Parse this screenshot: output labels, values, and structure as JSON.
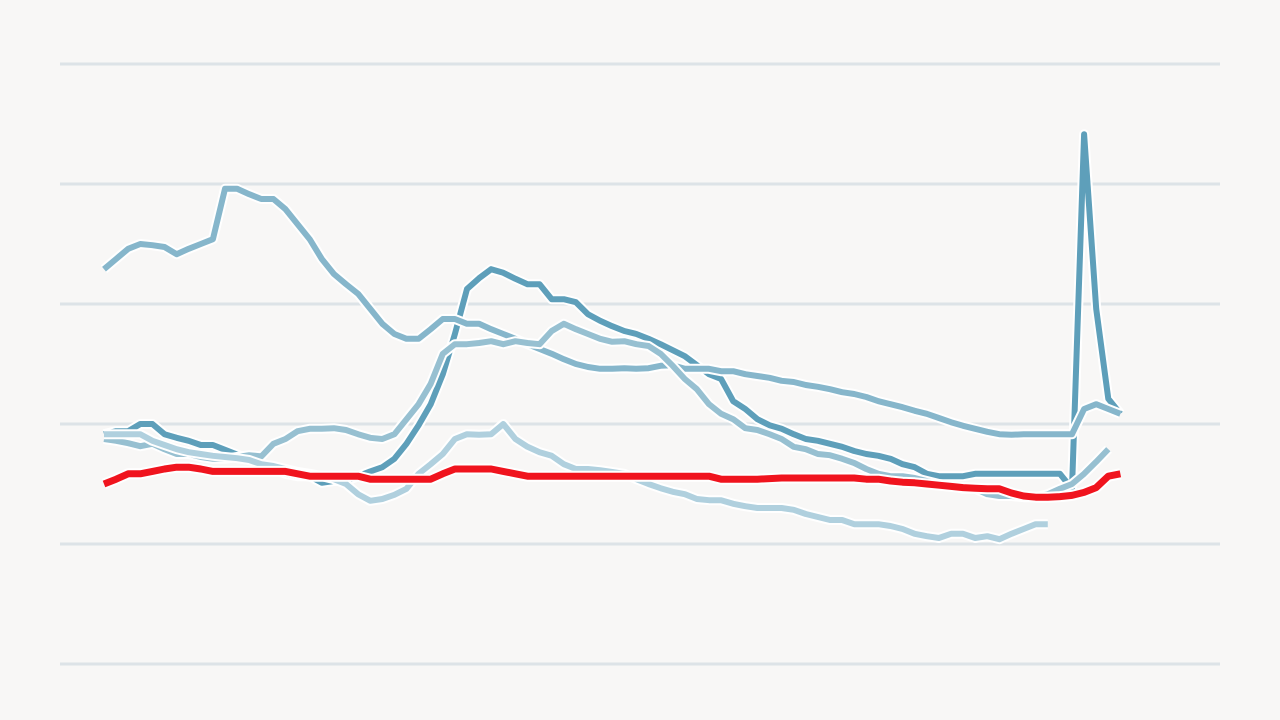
{
  "chart_data": {
    "type": "line",
    "title": "",
    "xlabel": "",
    "ylabel": "",
    "grid": true,
    "ylim": [
      0,
      100
    ],
    "x": [
      0,
      1,
      2,
      3,
      4,
      5,
      6,
      7,
      8,
      9,
      10,
      11,
      12,
      13,
      14,
      15,
      16,
      17,
      18,
      19,
      20,
      21,
      22,
      23,
      24,
      25,
      26,
      27,
      28,
      29,
      30,
      31,
      32,
      33,
      34,
      35,
      36,
      37,
      38,
      39,
      40,
      41,
      42,
      43,
      44,
      45,
      46,
      47,
      48,
      49,
      50,
      51,
      52,
      53,
      54,
      55,
      56,
      57,
      58,
      59,
      60,
      61,
      62,
      63,
      64,
      65,
      66,
      67,
      68,
      69,
      70,
      71,
      72,
      73,
      74,
      75,
      76,
      77,
      78,
      79,
      80,
      81,
      82,
      83,
      84
    ],
    "series": [
      {
        "color": "#5e9fba",
        "highlight": false,
        "values": [
          38.3,
          38.8,
          38.8,
          40.0,
          40.0,
          38.3,
          37.7,
          37.2,
          36.5,
          36.5,
          35.7,
          34.9,
          34.2,
          33.3,
          32.5,
          31.7,
          31.3,
          31.3,
          30.2,
          30.5,
          30.5,
          31.3,
          32.1,
          32.8,
          34.2,
          36.7,
          39.8,
          43.3,
          48.3,
          55.0,
          62.5,
          64.3,
          65.8,
          65.2,
          64.2,
          63.3,
          63.3,
          60.8,
          60.8,
          60.3,
          58.3,
          57.2,
          56.3,
          55.5,
          55.0,
          54.2,
          53.3,
          52.3,
          51.3,
          49.8,
          48.3,
          47.5,
          43.8,
          42.5,
          40.8,
          39.8,
          39.2,
          38.3,
          37.5,
          37.2,
          36.7,
          36.2,
          35.5,
          35.0,
          34.7,
          34.2,
          33.3,
          32.8,
          31.7,
          31.3,
          31.3,
          31.3,
          31.7,
          31.7,
          31.7,
          31.7,
          31.7,
          31.7,
          31.7,
          31.7,
          29.2,
          88.3,
          59.2,
          44.2,
          41.7
        ]
      },
      {
        "color": "#86b6cb",
        "highlight": false,
        "values": [
          65.8,
          67.5,
          69.2,
          70.0,
          69.8,
          69.5,
          68.3,
          69.2,
          70.0,
          70.8,
          79.2,
          79.2,
          78.3,
          77.5,
          77.5,
          75.8,
          73.3,
          70.8,
          67.5,
          65.0,
          63.3,
          61.7,
          59.2,
          56.7,
          55.0,
          54.2,
          54.2,
          55.8,
          57.5,
          57.5,
          56.7,
          56.7,
          55.8,
          55.0,
          54.2,
          53.3,
          52.5,
          51.7,
          50.8,
          50.0,
          49.5,
          49.2,
          49.2,
          49.3,
          49.2,
          49.3,
          49.7,
          49.8,
          49.2,
          49.2,
          49.2,
          48.8,
          48.8,
          48.3,
          48.0,
          47.7,
          47.2,
          47.0,
          46.5,
          46.2,
          45.8,
          45.3,
          45.0,
          44.5,
          43.8,
          43.3,
          42.8,
          42.2,
          41.7,
          41.0,
          40.3,
          39.7,
          39.2,
          38.7,
          38.3,
          38.2,
          38.3,
          38.3,
          38.3,
          38.3,
          38.3,
          42.5,
          43.3,
          42.5,
          41.7
        ]
      },
      {
        "color": "#97c0d1",
        "highlight": false,
        "values": [
          37.5,
          37.2,
          36.8,
          36.3,
          36.7,
          35.8,
          35.0,
          35.0,
          34.5,
          34.2,
          34.2,
          34.5,
          34.8,
          34.6,
          36.7,
          37.5,
          38.8,
          39.2,
          39.2,
          39.3,
          39.0,
          38.3,
          37.7,
          37.5,
          38.3,
          40.8,
          43.3,
          46.7,
          51.7,
          53.3,
          53.3,
          53.5,
          53.8,
          53.3,
          53.8,
          53.5,
          53.3,
          55.5,
          56.7,
          55.8,
          55.0,
          54.2,
          53.7,
          53.8,
          53.3,
          53.0,
          51.7,
          49.7,
          47.5,
          45.8,
          43.3,
          41.7,
          40.8,
          39.3,
          39.0,
          38.3,
          37.5,
          36.2,
          35.8,
          35.0,
          34.8,
          34.2,
          33.5,
          32.5,
          31.7,
          31.3,
          31.3,
          31.0,
          30.5,
          30.0,
          29.7,
          29.2,
          29.2,
          28.3,
          28.0,
          28.0,
          27.8,
          27.8,
          28.3,
          29.2,
          30.0,
          31.7,
          33.7,
          35.8,
          null
        ]
      },
      {
        "color": "#b0d0de",
        "highlight": false,
        "values": [
          38.3,
          38.3,
          38.3,
          38.3,
          37.2,
          36.5,
          35.8,
          35.3,
          35.0,
          34.7,
          34.5,
          34.3,
          34.0,
          33.3,
          33.0,
          32.5,
          32.0,
          31.7,
          31.3,
          30.8,
          30.0,
          28.3,
          27.2,
          27.5,
          28.2,
          29.2,
          31.7,
          33.3,
          35.0,
          37.5,
          38.3,
          38.2,
          38.3,
          40.0,
          37.5,
          36.2,
          35.3,
          34.7,
          33.3,
          32.5,
          32.5,
          32.3,
          32.0,
          31.7,
          30.8,
          30.0,
          29.3,
          28.7,
          28.3,
          27.5,
          27.3,
          27.3,
          26.7,
          26.3,
          26.0,
          26.0,
          26.0,
          25.7,
          25.0,
          24.5,
          24.0,
          24.0,
          23.3,
          23.3,
          23.3,
          23.0,
          22.5,
          21.7,
          21.3,
          21.0,
          21.7,
          21.7,
          21.0,
          21.3,
          20.8,
          21.7,
          22.5,
          23.3,
          23.3,
          null,
          null,
          null,
          null,
          null,
          null
        ]
      },
      {
        "color": "#f0141e",
        "highlight": true,
        "values": [
          30.0,
          30.8,
          31.7,
          31.7,
          32.1,
          32.5,
          32.8,
          32.8,
          32.5,
          32.1,
          32.1,
          32.1,
          32.1,
          32.1,
          32.1,
          32.1,
          31.7,
          31.3,
          31.3,
          31.3,
          31.3,
          31.3,
          30.8,
          30.8,
          30.8,
          30.8,
          30.8,
          30.8,
          31.7,
          32.5,
          32.5,
          32.5,
          32.5,
          32.1,
          31.7,
          31.3,
          31.3,
          31.3,
          31.3,
          31.3,
          31.3,
          31.3,
          31.3,
          31.3,
          31.3,
          31.3,
          31.3,
          31.3,
          31.3,
          31.3,
          31.3,
          30.8,
          30.8,
          30.8,
          30.8,
          30.9,
          31.0,
          31.0,
          31.0,
          31.0,
          31.0,
          31.0,
          31.0,
          30.8,
          30.8,
          30.5,
          30.3,
          30.2,
          30.0,
          29.8,
          29.6,
          29.4,
          29.3,
          29.2,
          29.2,
          28.5,
          28.0,
          27.8,
          27.8,
          27.9,
          28.1,
          28.6,
          29.4,
          31.3,
          31.7
        ]
      }
    ]
  }
}
